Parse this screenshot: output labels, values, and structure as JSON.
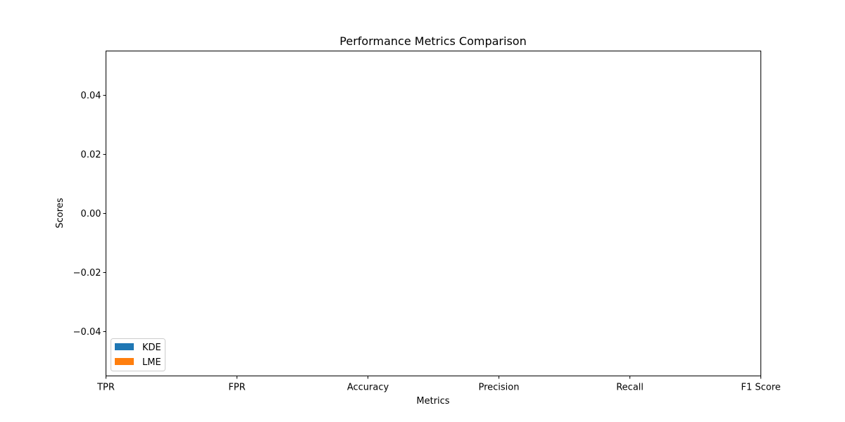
{
  "chart_data": {
    "type": "bar",
    "title": "Performance Metrics Comparison",
    "xlabel": "Metrics",
    "ylabel": "Scores",
    "categories": [
      "TPR",
      "FPR",
      "Accuracy",
      "Precision",
      "Recall",
      "F1 Score"
    ],
    "series": [
      {
        "name": "KDE",
        "color": "#1f77b4",
        "values": [
          0,
          0,
          0,
          0,
          0,
          0
        ]
      },
      {
        "name": "LME",
        "color": "#ff7f0e",
        "values": [
          0,
          0,
          0,
          0,
          0,
          0
        ]
      }
    ],
    "ylim": [
      -0.055,
      0.055
    ],
    "yticks": [
      {
        "value": 0.04,
        "label": "0.04"
      },
      {
        "value": 0.02,
        "label": "0.02"
      },
      {
        "value": 0.0,
        "label": "0.00"
      },
      {
        "value": -0.02,
        "label": "−0.02"
      },
      {
        "value": -0.04,
        "label": "−0.04"
      }
    ],
    "grid": false,
    "legend_position": "lower-left"
  }
}
